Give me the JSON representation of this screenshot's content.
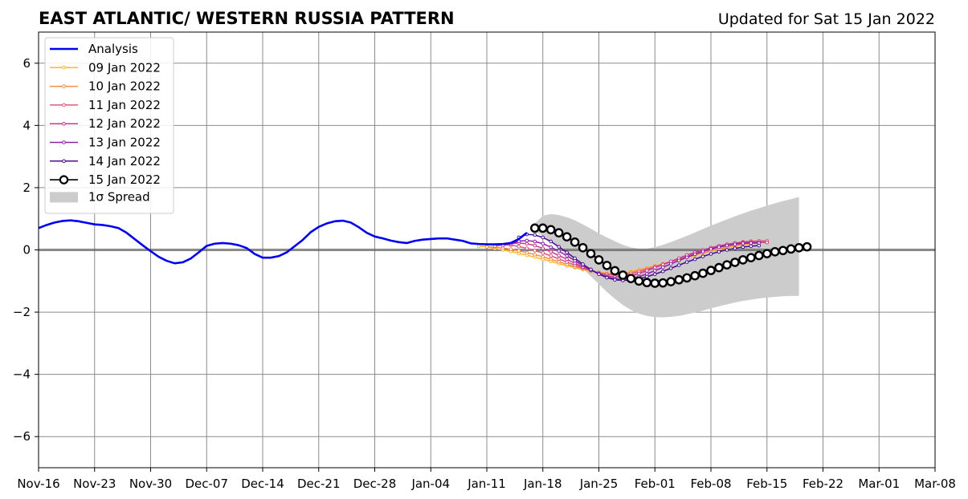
{
  "chart_data": {
    "type": "line",
    "title": "EAST ATLANTIC/ WESTERN RUSSIA PATTERN",
    "subtitle": "Updated for Sat 15 Jan 2022",
    "x_start": "2021-11-16",
    "x_end": "2022-03-08",
    "xticks": [
      {
        "date": "2021-11-16",
        "label": "Nov-16"
      },
      {
        "date": "2021-11-23",
        "label": "Nov-23"
      },
      {
        "date": "2021-11-30",
        "label": "Nov-30"
      },
      {
        "date": "2021-12-07",
        "label": "Dec-07"
      },
      {
        "date": "2021-12-14",
        "label": "Dec-14"
      },
      {
        "date": "2021-12-21",
        "label": "Dec-21"
      },
      {
        "date": "2021-12-28",
        "label": "Dec-28"
      },
      {
        "date": "2022-01-04",
        "label": "Jan-04"
      },
      {
        "date": "2022-01-11",
        "label": "Jan-11"
      },
      {
        "date": "2022-01-18",
        "label": "Jan-18"
      },
      {
        "date": "2022-01-25",
        "label": "Jan-25"
      },
      {
        "date": "2022-02-01",
        "label": "Feb-01"
      },
      {
        "date": "2022-02-08",
        "label": "Feb-08"
      },
      {
        "date": "2022-02-15",
        "label": "Feb-15"
      },
      {
        "date": "2022-02-22",
        "label": "Feb-22"
      },
      {
        "date": "2022-03-01",
        "label": "Mar-01"
      },
      {
        "date": "2022-03-08",
        "label": "Mar-08"
      }
    ],
    "yticks": [
      -6,
      -4,
      -2,
      0,
      2,
      4,
      6
    ],
    "ytick_labels": [
      "−6",
      "−4",
      "−2",
      "0",
      "2",
      "4",
      "6"
    ],
    "ylim": [
      -7,
      7
    ],
    "grid": true,
    "legend_position": "top-left",
    "legend_spread_label": "1σ Spread",
    "analysis": {
      "name": "Analysis",
      "color": "#0000ee",
      "start_date": "2021-11-16",
      "values": [
        0.7,
        0.8,
        0.88,
        0.93,
        0.95,
        0.92,
        0.87,
        0.82,
        0.8,
        0.76,
        0.7,
        0.55,
        0.35,
        0.15,
        -0.04,
        -0.22,
        -0.35,
        -0.43,
        -0.4,
        -0.28,
        -0.08,
        0.13,
        0.2,
        0.22,
        0.2,
        0.15,
        0.06,
        -0.13,
        -0.25,
        -0.25,
        -0.2,
        -0.08,
        0.12,
        0.32,
        0.57,
        0.74,
        0.85,
        0.92,
        0.94,
        0.88,
        0.73,
        0.55,
        0.43,
        0.37,
        0.3,
        0.25,
        0.22,
        0.29,
        0.33,
        0.35,
        0.37,
        0.37,
        0.33,
        0.29,
        0.21,
        0.19,
        0.18,
        0.18,
        0.19,
        0.22,
        0.35,
        0.55
      ]
    },
    "spread": {
      "name": "1σ Spread",
      "color": "#cccccc",
      "start_date": "2022-01-17",
      "upper": [
        0.85,
        1.1,
        1.15,
        1.12,
        1.05,
        0.95,
        0.82,
        0.68,
        0.53,
        0.4,
        0.28,
        0.16,
        0.08,
        0.04,
        0.04,
        0.09,
        0.16,
        0.25,
        0.35,
        0.45,
        0.56,
        0.67,
        0.78,
        0.88,
        0.98,
        1.08,
        1.17,
        1.26,
        1.34,
        1.42,
        1.5,
        1.57,
        1.63,
        1.7
      ],
      "lower": [
        0.6,
        0.45,
        0.25,
        0.05,
        -0.15,
        -0.37,
        -0.6,
        -0.85,
        -1.1,
        -1.35,
        -1.57,
        -1.77,
        -1.93,
        -2.05,
        -2.12,
        -2.16,
        -2.17,
        -2.15,
        -2.12,
        -2.07,
        -2.01,
        -1.95,
        -1.88,
        -1.81,
        -1.75,
        -1.69,
        -1.64,
        -1.6,
        -1.56,
        -1.53,
        -1.51,
        -1.49,
        -1.48,
        -1.48
      ]
    },
    "forecasts": [
      {
        "name": "09 Jan 2022",
        "color": "#ffb52e",
        "start_date": "2022-01-10",
        "values": [
          0.12,
          0.1,
          0.05,
          0.0,
          -0.05,
          -0.11,
          -0.17,
          -0.23,
          -0.3,
          -0.37,
          -0.44,
          -0.51,
          -0.57,
          -0.63,
          -0.68,
          -0.72,
          -0.75,
          -0.76,
          -0.74,
          -0.7,
          -0.64,
          -0.58,
          -0.52,
          -0.45,
          -0.38,
          -0.31,
          -0.24,
          -0.17,
          -0.1,
          -0.04,
          0.02,
          0.07,
          0.12,
          0.16,
          0.2,
          0.23,
          0.25
        ]
      },
      {
        "name": "10 Jan 2022",
        "color": "#f58e46",
        "start_date": "2022-01-11",
        "values": [
          0.1,
          0.09,
          0.06,
          0.02,
          -0.03,
          -0.09,
          -0.15,
          -0.22,
          -0.3,
          -0.38,
          -0.46,
          -0.54,
          -0.61,
          -0.68,
          -0.73,
          -0.77,
          -0.78,
          -0.76,
          -0.72,
          -0.66,
          -0.59,
          -0.52,
          -0.45,
          -0.38,
          -0.3,
          -0.23,
          -0.16,
          -0.09,
          -0.02,
          0.04,
          0.1,
          0.15,
          0.19,
          0.22,
          0.24,
          0.25
        ]
      },
      {
        "name": "11 Jan 2022",
        "color": "#e3577a",
        "start_date": "2022-01-12",
        "values": [
          0.12,
          0.16,
          0.15,
          0.11,
          0.05,
          -0.02,
          -0.1,
          -0.19,
          -0.29,
          -0.39,
          -0.49,
          -0.58,
          -0.66,
          -0.73,
          -0.78,
          -0.81,
          -0.8,
          -0.76,
          -0.7,
          -0.63,
          -0.55,
          -0.47,
          -0.38,
          -0.29,
          -0.2,
          -0.12,
          -0.04,
          0.04,
          0.11,
          0.17,
          0.22,
          0.26,
          0.28,
          0.29,
          0.29
        ]
      },
      {
        "name": "12 Jan 2022",
        "color": "#c13b8f",
        "start_date": "2022-01-13",
        "values": [
          0.14,
          0.2,
          0.22,
          0.2,
          0.14,
          0.05,
          -0.06,
          -0.18,
          -0.3,
          -0.43,
          -0.55,
          -0.66,
          -0.76,
          -0.83,
          -0.87,
          -0.87,
          -0.83,
          -0.76,
          -0.67,
          -0.57,
          -0.47,
          -0.37,
          -0.27,
          -0.17,
          -0.08,
          0.0,
          0.07,
          0.13,
          0.18,
          0.22,
          0.24,
          0.25,
          0.25,
          0.24
        ]
      },
      {
        "name": "13 Jan 2022",
        "color": "#8f1fa8",
        "start_date": "2022-01-14",
        "values": [
          0.2,
          0.28,
          0.3,
          0.27,
          0.2,
          0.09,
          -0.04,
          -0.19,
          -0.35,
          -0.5,
          -0.64,
          -0.77,
          -0.87,
          -0.93,
          -0.95,
          -0.92,
          -0.86,
          -0.77,
          -0.67,
          -0.56,
          -0.45,
          -0.34,
          -0.24,
          -0.14,
          -0.05,
          0.03,
          0.09,
          0.14,
          0.18,
          0.21,
          0.22,
          0.22
        ]
      },
      {
        "name": "14 Jan 2022",
        "color": "#4a0d8f",
        "start_date": "2022-01-15",
        "values": [
          0.4,
          0.5,
          0.48,
          0.4,
          0.27,
          0.1,
          -0.08,
          -0.27,
          -0.46,
          -0.63,
          -0.78,
          -0.89,
          -0.96,
          -0.98,
          -0.97,
          -0.93,
          -0.86,
          -0.78,
          -0.69,
          -0.59,
          -0.49,
          -0.39,
          -0.3,
          -0.21,
          -0.13,
          -0.06,
          0.0,
          0.05,
          0.09,
          0.12,
          0.14
        ]
      },
      {
        "name": "15 Jan 2022",
        "color": "#000000",
        "marker": "open-circle",
        "start_date": "2022-01-17",
        "values": [
          0.7,
          0.7,
          0.65,
          0.55,
          0.42,
          0.25,
          0.07,
          -0.12,
          -0.32,
          -0.5,
          -0.67,
          -0.81,
          -0.92,
          -1.0,
          -1.05,
          -1.07,
          -1.06,
          -1.02,
          -0.96,
          -0.9,
          -0.83,
          -0.75,
          -0.66,
          -0.57,
          -0.48,
          -0.4,
          -0.32,
          -0.25,
          -0.18,
          -0.12,
          -0.06,
          -0.02,
          0.03,
          0.07,
          0.1
        ]
      }
    ]
  }
}
